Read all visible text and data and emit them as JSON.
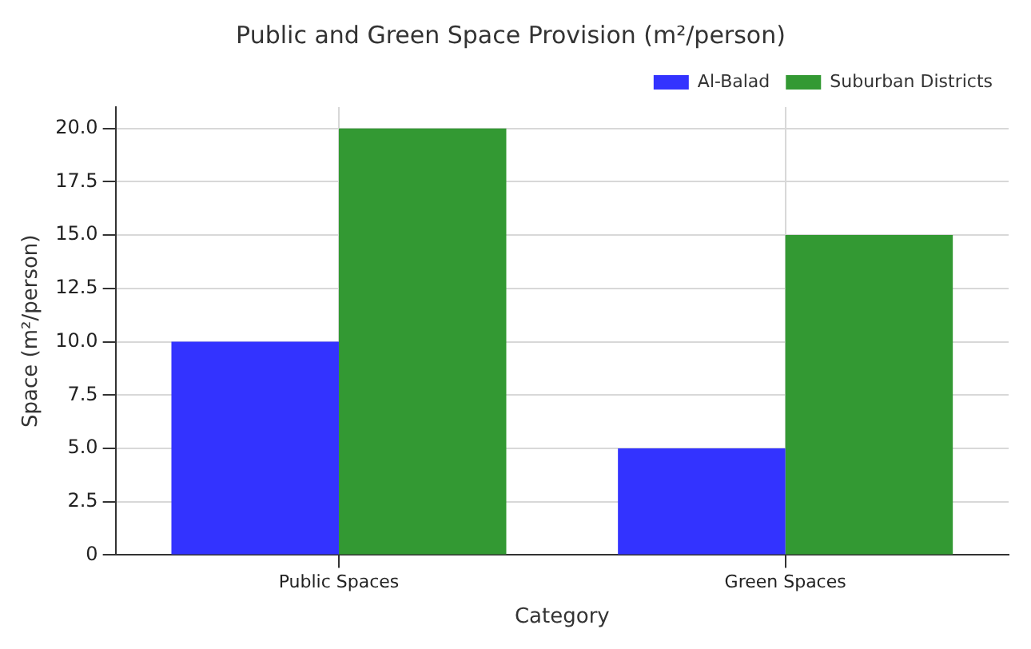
{
  "chart_data": {
    "type": "bar",
    "title": "Public and Green Space Provision (m²/person)",
    "xlabel": "Category",
    "ylabel": "Space (m²/person)",
    "categories": [
      "Public Spaces",
      "Green Spaces"
    ],
    "series": [
      {
        "name": "Al-Balad",
        "color": "#3333ff",
        "values": [
          10,
          5
        ]
      },
      {
        "name": "Suburban Districts",
        "color": "#339933",
        "values": [
          20,
          15
        ]
      }
    ],
    "ylim": [
      0,
      21
    ],
    "yticks": [
      0,
      {
        "value": 2.5,
        "label": "2.5"
      },
      {
        "value": 5,
        "label": "5.0"
      },
      {
        "value": 7.5,
        "label": "7.5"
      },
      {
        "value": 10,
        "label": "10.0"
      },
      {
        "value": 12.5,
        "label": "12.5"
      },
      {
        "value": 15,
        "label": "15.0"
      },
      {
        "value": 17.5,
        "label": "17.5"
      },
      {
        "value": 20,
        "label": "20.0"
      }
    ],
    "grid": true,
    "legend": "top right"
  }
}
